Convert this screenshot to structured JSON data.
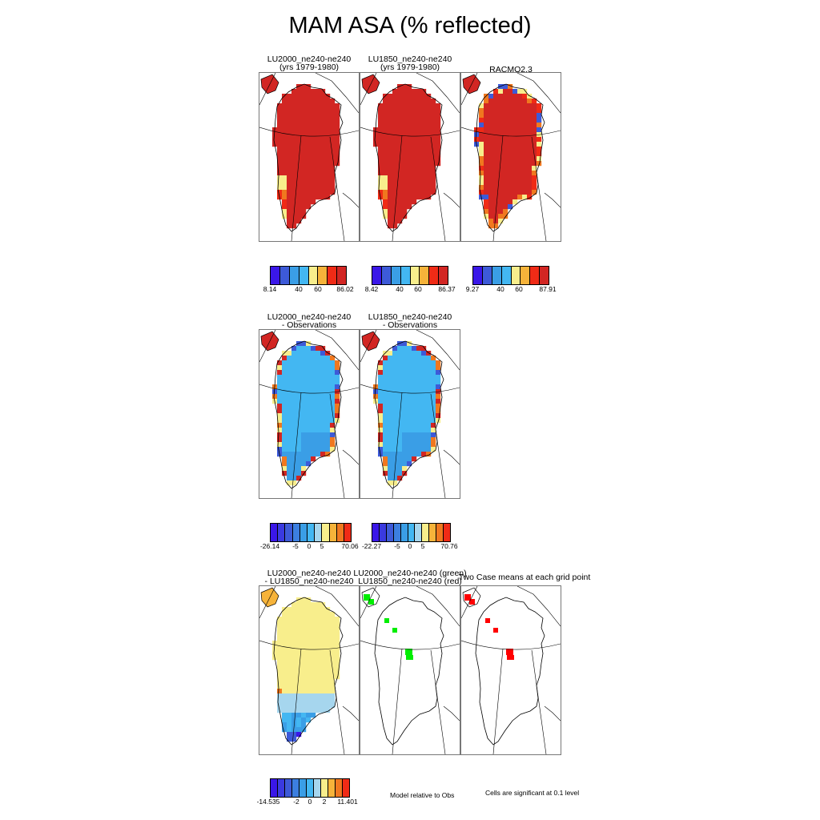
{
  "title": "MAM ASA (% reflected)",
  "colors": {
    "scale": [
      "#3a17e8",
      "#3d5ad8",
      "#3a9ee6",
      "#43b7f2",
      "#a6d6ee",
      "#f8ee8c",
      "#f6b33a",
      "#f0781f",
      "#f02b16",
      "#d22623",
      "#c03030"
    ],
    "green": "#00ee00",
    "red": "#ff0000",
    "coast": "#000000",
    "grid": "#000000"
  },
  "panels": {
    "p1": {
      "line1": "LU2000_ne240-ne240",
      "line2": "(yrs 1979-1980)"
    },
    "p2": {
      "line1": "LU1850_ne240-ne240",
      "line2": "(yrs 1979-1980)"
    },
    "p3": {
      "line1": "RACMO2.3",
      "line2": ""
    },
    "p4": {
      "line1": "LU2000_ne240-ne240",
      "line2": "- Observations"
    },
    "p5": {
      "line1": "LU1850_ne240-ne240",
      "line2": "- Observations"
    },
    "p6": {
      "line1": "LU2000_ne240-ne240",
      "line2": "- LU1850_ne240-ne240"
    },
    "p7": {
      "line1": "LU2000_ne240-ne240 (green)",
      "line2": "LU1850_ne240-ne240 (red)"
    },
    "p8": {
      "line1": "Two Case means at each grid point",
      "line2": ""
    }
  },
  "colorbars": {
    "cb1": {
      "min": "8.14",
      "mid1": "40",
      "mid2": "60",
      "max": "86.02"
    },
    "cb2": {
      "min": "8.42",
      "mid1": "40",
      "mid2": "60",
      "max": "86.37"
    },
    "cb3": {
      "min": "9.27",
      "mid1": "40",
      "mid2": "60",
      "max": "87.91"
    },
    "cb4": {
      "min": "-26.14",
      "mid1": "-5",
      "mid2": "0",
      "mid3": "5",
      "max": "70.06"
    },
    "cb5": {
      "min": "-22.27",
      "mid1": "-5",
      "mid2": "0",
      "mid3": "5",
      "max": "70.76"
    },
    "cb6": {
      "min": "-14.535",
      "mid1": "-2",
      "mid2": "0",
      "mid3": "2",
      "max": "11.401"
    }
  },
  "notes": {
    "model_relative": "Model relative to Obs",
    "significance": "Cells are significant at 0.1 level"
  },
  "chart_data": [
    {
      "type": "heatmap",
      "title": "LU2000_ne240-ne240 (yrs 1979-1980)",
      "range": [
        8.14,
        86.02
      ],
      "color_levels": [
        "min",
        40,
        60,
        "max"
      ],
      "dominant": "high albedo (red) over ice sheet, lower values along southwest margin"
    },
    {
      "type": "heatmap",
      "title": "LU1850_ne240-ne240 (yrs 1979-1980)",
      "range": [
        8.42,
        86.37
      ],
      "color_levels": [
        "min",
        40,
        60,
        "max"
      ],
      "dominant": "high albedo (red) over ice sheet, lower values along southwest margin"
    },
    {
      "type": "heatmap",
      "title": "RACMO2.3",
      "range": [
        9.27,
        87.91
      ],
      "color_levels": [
        "min",
        40,
        60,
        "max"
      ],
      "dominant": "high albedo with lower values along margins"
    },
    {
      "type": "heatmap",
      "title": "LU2000_ne240-ne240 - Observations",
      "range": [
        -26.14,
        70.06
      ],
      "color_levels": [
        "min",
        -5,
        0,
        5,
        "max"
      ],
      "dominant": "negative bias (light blue) over interior, positive (red) along margins"
    },
    {
      "type": "heatmap",
      "title": "LU1850_ne240-ne240 - Observations",
      "range": [
        -22.27,
        70.76
      ],
      "color_levels": [
        "min",
        -5,
        0,
        5,
        "max"
      ],
      "dominant": "negative bias (light blue) over interior, positive (red) along margins"
    },
    {
      "type": "heatmap",
      "title": "LU2000_ne240-ne240 - LU1850_ne240-ne240",
      "range": [
        -14.535,
        11.401
      ],
      "color_levels": [
        "min",
        -2,
        0,
        2,
        "max"
      ],
      "dominant": "slightly positive (yellow) north, negative (blue) south"
    },
    {
      "type": "heatmap",
      "title": "LU2000_ne240-ne240 (green) LU1850_ne240-ne240 (red)",
      "series": [
        {
          "name": "LU2000_ne240-ne240 (green)"
        },
        {
          "name": "LU1850_ne240-ne240 (red)"
        }
      ]
    }
  ]
}
